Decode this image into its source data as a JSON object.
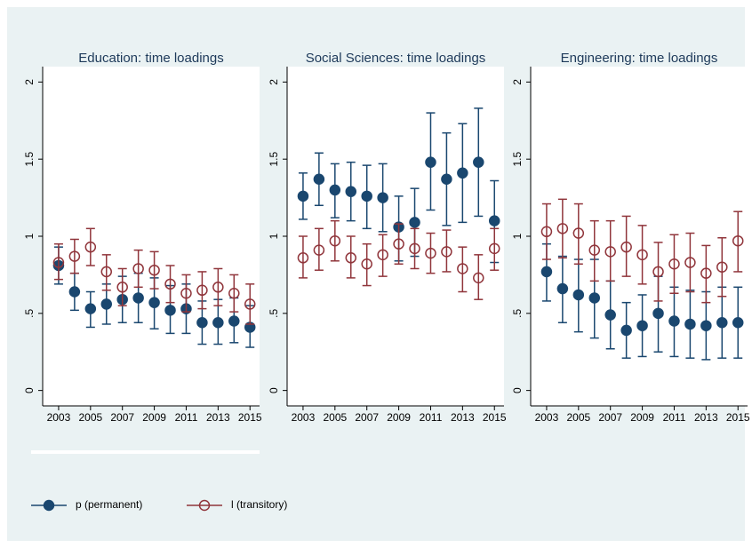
{
  "chart_data": [
    {
      "type": "errorbar",
      "title": "Education: time loadings",
      "x": [
        2003,
        2004,
        2005,
        2006,
        2007,
        2008,
        2009,
        2010,
        2011,
        2012,
        2013,
        2014,
        2015
      ],
      "xlim": [
        2002,
        2015.6
      ],
      "xticks": [
        2003,
        2005,
        2007,
        2009,
        2011,
        2013,
        2015
      ],
      "ylim": [
        -0.1,
        2.1
      ],
      "yticks": [
        0,
        {
          "value": 0.5,
          "label": ".5"
        },
        1,
        1.5,
        2
      ],
      "series": [
        {
          "name": "p (permanent)",
          "color": "#1a476f",
          "marker": "filled",
          "values": [
            0.81,
            0.64,
            0.53,
            0.56,
            0.59,
            0.6,
            0.57,
            0.52,
            0.53,
            0.44,
            0.44,
            0.45,
            0.41
          ],
          "lower": [
            0.69,
            0.52,
            0.41,
            0.43,
            0.44,
            0.44,
            0.4,
            0.37,
            0.37,
            0.3,
            0.3,
            0.31,
            0.28
          ],
          "upper": [
            0.93,
            0.76,
            0.64,
            0.69,
            0.74,
            0.76,
            0.73,
            0.68,
            0.69,
            0.58,
            0.59,
            0.6,
            0.55
          ]
        },
        {
          "name": "l (transitory)",
          "color": "#90353b",
          "marker": "hollow",
          "values": [
            0.83,
            0.87,
            0.93,
            0.77,
            0.67,
            0.79,
            0.78,
            0.69,
            0.63,
            0.65,
            0.67,
            0.63,
            0.56
          ],
          "lower": [
            0.72,
            0.76,
            0.81,
            0.65,
            0.55,
            0.67,
            0.66,
            0.57,
            0.51,
            0.53,
            0.55,
            0.51,
            0.43
          ],
          "upper": [
            0.95,
            0.98,
            1.05,
            0.88,
            0.79,
            0.91,
            0.9,
            0.81,
            0.75,
            0.77,
            0.79,
            0.75,
            0.69
          ]
        }
      ]
    },
    {
      "type": "errorbar",
      "title": "Social Sciences: time loadings",
      "x": [
        2003,
        2004,
        2005,
        2006,
        2007,
        2008,
        2009,
        2010,
        2011,
        2012,
        2013,
        2014,
        2015
      ],
      "xlim": [
        2002,
        2015.6
      ],
      "xticks": [
        2003,
        2005,
        2007,
        2009,
        2011,
        2013,
        2015
      ],
      "ylim": [
        -0.1,
        2.1
      ],
      "yticks": [
        0,
        {
          "value": 0.5,
          "label": ".5"
        },
        1,
        1.5,
        2
      ],
      "series": [
        {
          "color": "#1a476f",
          "marker": "filled",
          "values": [
            1.26,
            1.37,
            1.3,
            1.29,
            1.26,
            1.25,
            1.06,
            1.09,
            1.48,
            1.37,
            1.41,
            1.48,
            1.1
          ],
          "lower": [
            1.11,
            1.2,
            1.12,
            1.1,
            1.05,
            1.03,
            0.84,
            0.87,
            1.17,
            1.07,
            1.09,
            1.13,
            0.83
          ],
          "upper": [
            1.41,
            1.54,
            1.47,
            1.48,
            1.46,
            1.47,
            1.26,
            1.31,
            1.8,
            1.67,
            1.73,
            1.83,
            1.36
          ]
        },
        {
          "color": "#90353b",
          "marker": "hollow",
          "values": [
            0.86,
            0.91,
            0.97,
            0.86,
            0.82,
            0.88,
            0.95,
            0.92,
            0.89,
            0.9,
            0.79,
            0.73,
            0.92
          ],
          "lower": [
            0.73,
            0.78,
            0.84,
            0.73,
            0.68,
            0.74,
            0.82,
            0.79,
            0.76,
            0.77,
            0.64,
            0.59,
            0.78
          ],
          "upper": [
            1.0,
            1.05,
            1.1,
            1.0,
            0.95,
            1.01,
            1.08,
            1.05,
            1.02,
            1.04,
            0.93,
            0.88,
            1.05
          ]
        }
      ]
    },
    {
      "type": "errorbar",
      "title": "Engineering: time loadings",
      "x": [
        2003,
        2004,
        2005,
        2006,
        2007,
        2008,
        2009,
        2010,
        2011,
        2012,
        2013,
        2014,
        2015
      ],
      "xlim": [
        2002,
        2015.6
      ],
      "xticks": [
        2003,
        2005,
        2007,
        2009,
        2011,
        2013,
        2015
      ],
      "ylim": [
        -0.1,
        2.1
      ],
      "yticks": [
        0,
        {
          "value": 0.5,
          "label": ".5"
        },
        1,
        1.5,
        2
      ],
      "series": [
        {
          "color": "#1a476f",
          "marker": "filled",
          "values": [
            0.77,
            0.66,
            0.62,
            0.6,
            0.49,
            0.39,
            0.42,
            0.5,
            0.45,
            0.43,
            0.42,
            0.44,
            0.44
          ],
          "lower": [
            0.58,
            0.44,
            0.38,
            0.34,
            0.27,
            0.21,
            0.22,
            0.25,
            0.22,
            0.21,
            0.2,
            0.21,
            0.21
          ],
          "upper": [
            0.95,
            0.87,
            0.85,
            0.85,
            0.71,
            0.57,
            0.62,
            0.74,
            0.67,
            0.65,
            0.64,
            0.67,
            0.67
          ]
        },
        {
          "color": "#90353b",
          "marker": "hollow",
          "values": [
            1.03,
            1.05,
            1.02,
            0.91,
            0.9,
            0.93,
            0.88,
            0.77,
            0.82,
            0.83,
            0.76,
            0.8,
            0.97
          ],
          "lower": [
            0.85,
            0.86,
            0.82,
            0.71,
            0.71,
            0.74,
            0.69,
            0.58,
            0.63,
            0.64,
            0.57,
            0.61,
            0.77
          ],
          "upper": [
            1.21,
            1.24,
            1.21,
            1.1,
            1.1,
            1.13,
            1.07,
            0.96,
            1.01,
            1.02,
            0.94,
            0.99,
            1.16
          ]
        }
      ]
    }
  ]
}
